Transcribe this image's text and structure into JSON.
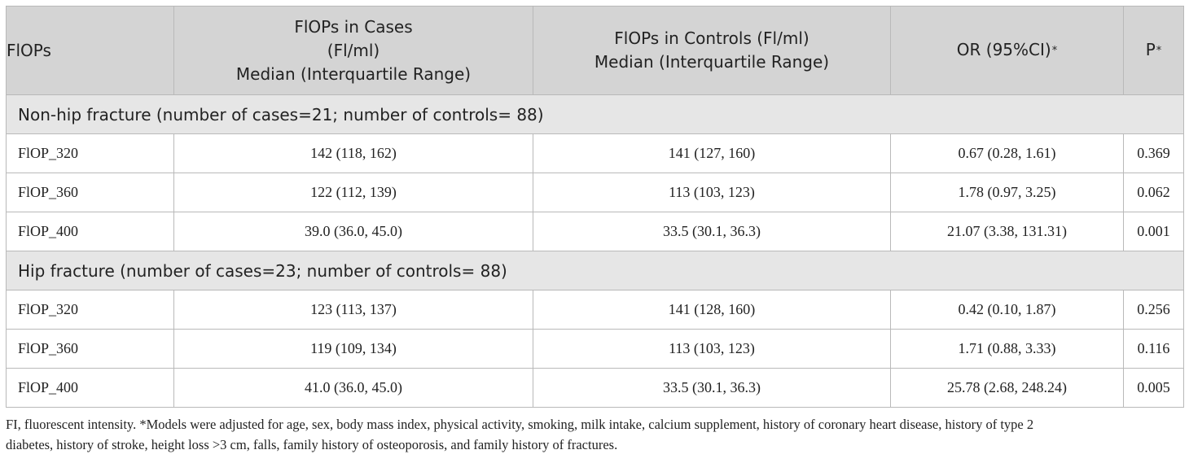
{
  "table": {
    "headers": [
      [
        "FlOPs"
      ],
      [
        "FlOPs in Cases",
        "(Fl/ml)",
        "Median (Interquartile Range)"
      ],
      [
        "FlOPs in Controls (Fl/ml)",
        "Median (Interquartile Range)"
      ],
      [
        "OR (95%CI)"
      ],
      [
        "P"
      ]
    ],
    "header_star": "*",
    "sections": [
      {
        "title": "Non-hip fracture (number of cases=21; number of controls= 88)",
        "rows": [
          [
            "FlOP_320",
            "142 (118, 162)",
            "141 (127, 160)",
            "0.67 (0.28, 1.61)",
            "0.369"
          ],
          [
            "FlOP_360",
            "122 (112, 139)",
            "113 (103, 123)",
            "1.78 (0.97, 3.25)",
            "0.062"
          ],
          [
            "FlOP_400",
            "39.0 (36.0, 45.0)",
            "33.5 (30.1, 36.3)",
            "21.07 (3.38, 131.31)",
            "0.001"
          ]
        ]
      },
      {
        "title": "Hip fracture (number of cases=23; number of controls= 88)",
        "rows": [
          [
            "FlOP_320",
            "123 (113, 137)",
            "141 (128, 160)",
            "0.42 (0.10, 1.87)",
            "0.256"
          ],
          [
            "FlOP_360",
            "119 (109, 134)",
            "113 (103, 123)",
            "1.71 (0.88, 3.33)",
            "0.116"
          ],
          [
            "FlOP_400",
            "41.0 (36.0, 45.0)",
            "33.5 (30.1, 36.3)",
            "25.78 (2.68, 248.24)",
            "0.005"
          ]
        ]
      }
    ]
  },
  "footnote": {
    "line1": "FI, fluorescent intensity. *Models were adjusted for age, sex, body mass index, physical activity, smoking, milk intake, calcium supplement, history of coronary heart disease, history of type 2",
    "line2": "diabetes, history of stroke, height loss >3 cm, falls, family history of osteoporosis, and family history of fractures."
  }
}
